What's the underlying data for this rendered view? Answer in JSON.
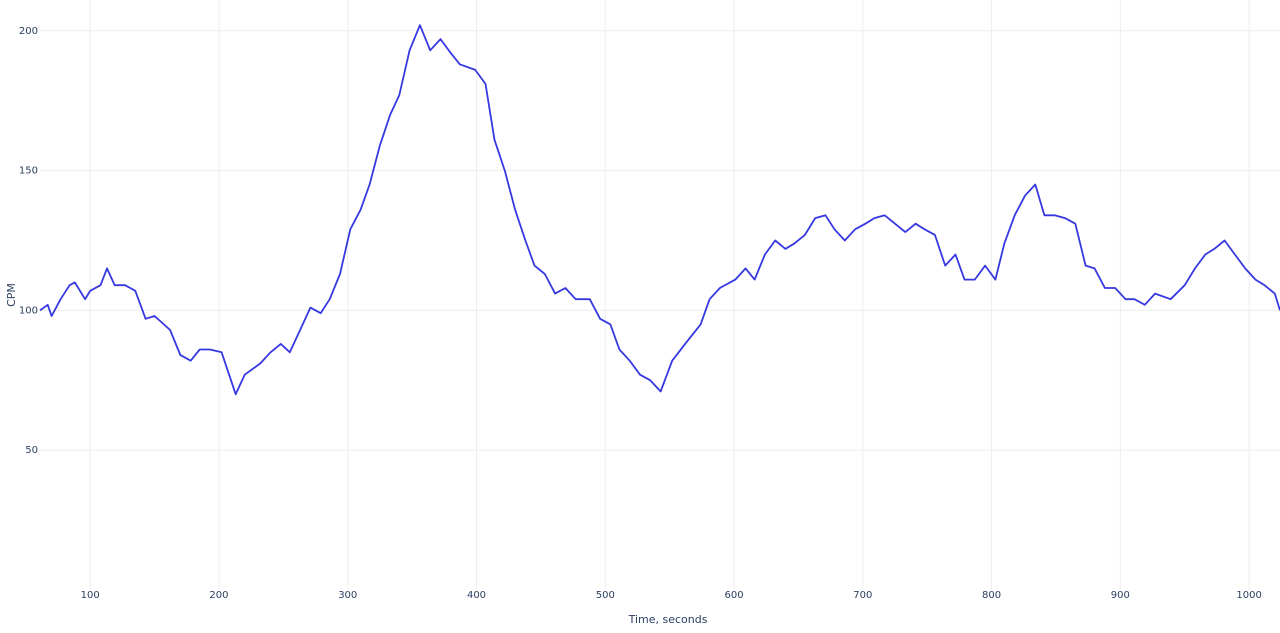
{
  "chart_data": {
    "type": "line",
    "xlabel": "Time, seconds",
    "ylabel": "CPM",
    "xlim": [
      61,
      1024
    ],
    "ylim": [
      0,
      211
    ],
    "xticks": [
      100,
      200,
      300,
      400,
      500,
      600,
      700,
      800,
      900,
      1000
    ],
    "yticks": [
      50,
      100,
      150,
      200
    ],
    "grid": true,
    "x": [
      61,
      67,
      70,
      77,
      84,
      88,
      96,
      100,
      108,
      113,
      119,
      127,
      135,
      143,
      150,
      162,
      170,
      178,
      185,
      193,
      202,
      213,
      220,
      232,
      240,
      248,
      255,
      263,
      271,
      279,
      286,
      294,
      302,
      310,
      317,
      325,
      333,
      340,
      348,
      356,
      364,
      372,
      380,
      387,
      399,
      407,
      414,
      422,
      430,
      438,
      445,
      453,
      461,
      469,
      477,
      488,
      496,
      504,
      511,
      519,
      527,
      535,
      543,
      552,
      562,
      574,
      581,
      589,
      601,
      609,
      616,
      624,
      632,
      640,
      647,
      655,
      663,
      671,
      678,
      686,
      694,
      702,
      709,
      717,
      725,
      733,
      741,
      748,
      756,
      764,
      772,
      779,
      787,
      795,
      803,
      810,
      818,
      826,
      834,
      841,
      849,
      857,
      865,
      873,
      880,
      888,
      896,
      904,
      911,
      919,
      927,
      939,
      950,
      958,
      966,
      973,
      981,
      989,
      997,
      1005,
      1012,
      1020,
      1024
    ],
    "series": [
      {
        "name": "CPM",
        "color": "#3638e0",
        "values": [
          100,
          102,
          98,
          104,
          109,
          110,
          104,
          107,
          109,
          115,
          109,
          109,
          107,
          97,
          98,
          93,
          84,
          82,
          86,
          86,
          85,
          70,
          77,
          81,
          85,
          88,
          85,
          93,
          101,
          99,
          104,
          113,
          129,
          136,
          145,
          159,
          170,
          177,
          193,
          202,
          193,
          197,
          192,
          188,
          186,
          181,
          161,
          150,
          136,
          125,
          116,
          113,
          106,
          108,
          104,
          104,
          97,
          95,
          86,
          82,
          77,
          75,
          71,
          82,
          88,
          95,
          104,
          108,
          111,
          115,
          111,
          120,
          125,
          122,
          124,
          127,
          133,
          134,
          129,
          125,
          129,
          131,
          133,
          134,
          131,
          128,
          131,
          129,
          127,
          116,
          120,
          111,
          111,
          116,
          111,
          124,
          134,
          141,
          145,
          134,
          134,
          133,
          131,
          116,
          115,
          108,
          108,
          104,
          104,
          102,
          106,
          104,
          109,
          115,
          120,
          122,
          125,
          120,
          115,
          111,
          109,
          106,
          100
        ]
      }
    ]
  }
}
